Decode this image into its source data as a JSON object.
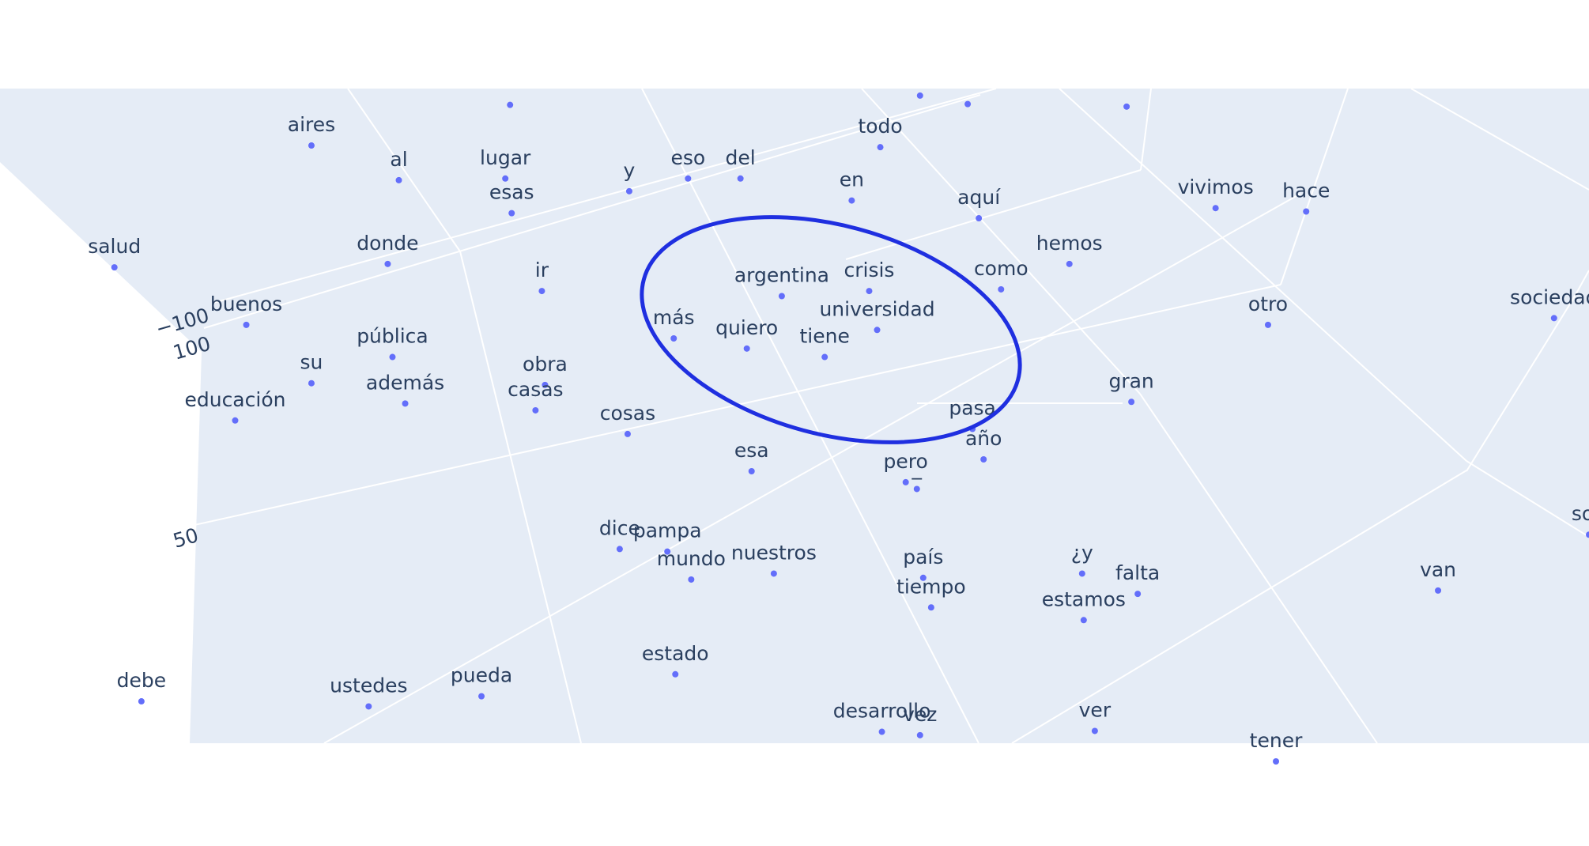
{
  "chart_data": {
    "type": "scatter",
    "subtype": "3d-text-scatter",
    "title": "",
    "marker_color": "#636efa",
    "annotation_color": "#1f2fe0",
    "plot_background": "#e5ecf6",
    "grid": true,
    "tick_labels": [
      "−100",
      "100",
      "50"
    ],
    "points": [
      {
        "label": "aires",
        "x": 0.196,
        "y": 0.172
      },
      {
        "label": "al",
        "x": 0.251,
        "y": 0.213
      },
      {
        "label": "lugar",
        "x": 0.318,
        "y": 0.211
      },
      {
        "label": "esas",
        "x": 0.322,
        "y": 0.252
      },
      {
        "label": "y",
        "x": 0.396,
        "y": 0.226
      },
      {
        "label": "eso",
        "x": 0.433,
        "y": 0.211
      },
      {
        "label": "del",
        "x": 0.466,
        "y": 0.211
      },
      {
        "label": "todo",
        "x": 0.554,
        "y": 0.174
      },
      {
        "label": "en",
        "x": 0.536,
        "y": 0.237
      },
      {
        "label": "aquí",
        "x": 0.616,
        "y": 0.258
      },
      {
        "label": "vivimos",
        "x": 0.765,
        "y": 0.246
      },
      {
        "label": "hace",
        "x": 0.822,
        "y": 0.25
      },
      {
        "label": "salud",
        "x": 0.072,
        "y": 0.316
      },
      {
        "label": "donde",
        "x": 0.244,
        "y": 0.312
      },
      {
        "label": "ir",
        "x": 0.341,
        "y": 0.344
      },
      {
        "label": "hemos",
        "x": 0.673,
        "y": 0.312
      },
      {
        "label": "argentina",
        "x": 0.492,
        "y": 0.35
      },
      {
        "label": "crisis",
        "x": 0.547,
        "y": 0.344
      },
      {
        "label": "como",
        "x": 0.63,
        "y": 0.342
      },
      {
        "label": "universidad",
        "x": 0.552,
        "y": 0.39
      },
      {
        "label": "buenos",
        "x": 0.155,
        "y": 0.384
      },
      {
        "label": "pública",
        "x": 0.247,
        "y": 0.422
      },
      {
        "label": "más",
        "x": 0.424,
        "y": 0.4
      },
      {
        "label": "quiero",
        "x": 0.47,
        "y": 0.412
      },
      {
        "label": "tiene",
        "x": 0.519,
        "y": 0.422
      },
      {
        "label": "otro",
        "x": 0.798,
        "y": 0.384
      },
      {
        "label": "sociedad",
        "x": 0.978,
        "y": 0.376
      },
      {
        "label": "su",
        "x": 0.196,
        "y": 0.453
      },
      {
        "label": "además",
        "x": 0.255,
        "y": 0.477
      },
      {
        "label": "obra",
        "x": 0.343,
        "y": 0.455
      },
      {
        "label": "casas",
        "x": 0.337,
        "y": 0.485
      },
      {
        "label": "educación",
        "x": 0.148,
        "y": 0.497
      },
      {
        "label": "gran",
        "x": 0.712,
        "y": 0.475
      },
      {
        "label": "pasa",
        "x": 0.612,
        "y": 0.507
      },
      {
        "label": "cosas",
        "x": 0.395,
        "y": 0.513
      },
      {
        "label": "año",
        "x": 0.619,
        "y": 0.543
      },
      {
        "label": "esa",
        "x": 0.473,
        "y": 0.557
      },
      {
        "label": "pero",
        "x": 0.57,
        "y": 0.57
      },
      {
        "label": "_",
        "x": 0.577,
        "y": 0.578
      },
      {
        "label": "dice",
        "x": 0.39,
        "y": 0.649
      },
      {
        "label": "pampa",
        "x": 0.42,
        "y": 0.652
      },
      {
        "label": "mundo",
        "x": 0.435,
        "y": 0.685
      },
      {
        "label": "nuestros",
        "x": 0.487,
        "y": 0.678
      },
      {
        "label": "país",
        "x": 0.581,
        "y": 0.683
      },
      {
        "label": "tiempo",
        "x": 0.586,
        "y": 0.718
      },
      {
        "label": "¿y",
        "x": 0.681,
        "y": 0.678
      },
      {
        "label": "falta",
        "x": 0.716,
        "y": 0.702
      },
      {
        "label": "estamos",
        "x": 0.682,
        "y": 0.733
      },
      {
        "label": "van",
        "x": 0.905,
        "y": 0.698
      },
      {
        "label": "son",
        "x": 1.0,
        "y": 0.632
      },
      {
        "label": "estado",
        "x": 0.425,
        "y": 0.797
      },
      {
        "label": "debe",
        "x": 0.089,
        "y": 0.829
      },
      {
        "label": "ustedes",
        "x": 0.232,
        "y": 0.835
      },
      {
        "label": "pueda",
        "x": 0.303,
        "y": 0.823
      },
      {
        "label": "desarrollo",
        "x": 0.555,
        "y": 0.865
      },
      {
        "label": "vez",
        "x": 0.579,
        "y": 0.869
      },
      {
        "label": "ver",
        "x": 0.689,
        "y": 0.864
      },
      {
        "label": "tener",
        "x": 0.803,
        "y": 0.9
      },
      {
        "label": "",
        "x": 0.321,
        "y": 0.124
      },
      {
        "label": "",
        "x": 0.579,
        "y": 0.113
      },
      {
        "label": "",
        "x": 0.609,
        "y": 0.123
      },
      {
        "label": "",
        "x": 0.709,
        "y": 0.126
      }
    ]
  }
}
